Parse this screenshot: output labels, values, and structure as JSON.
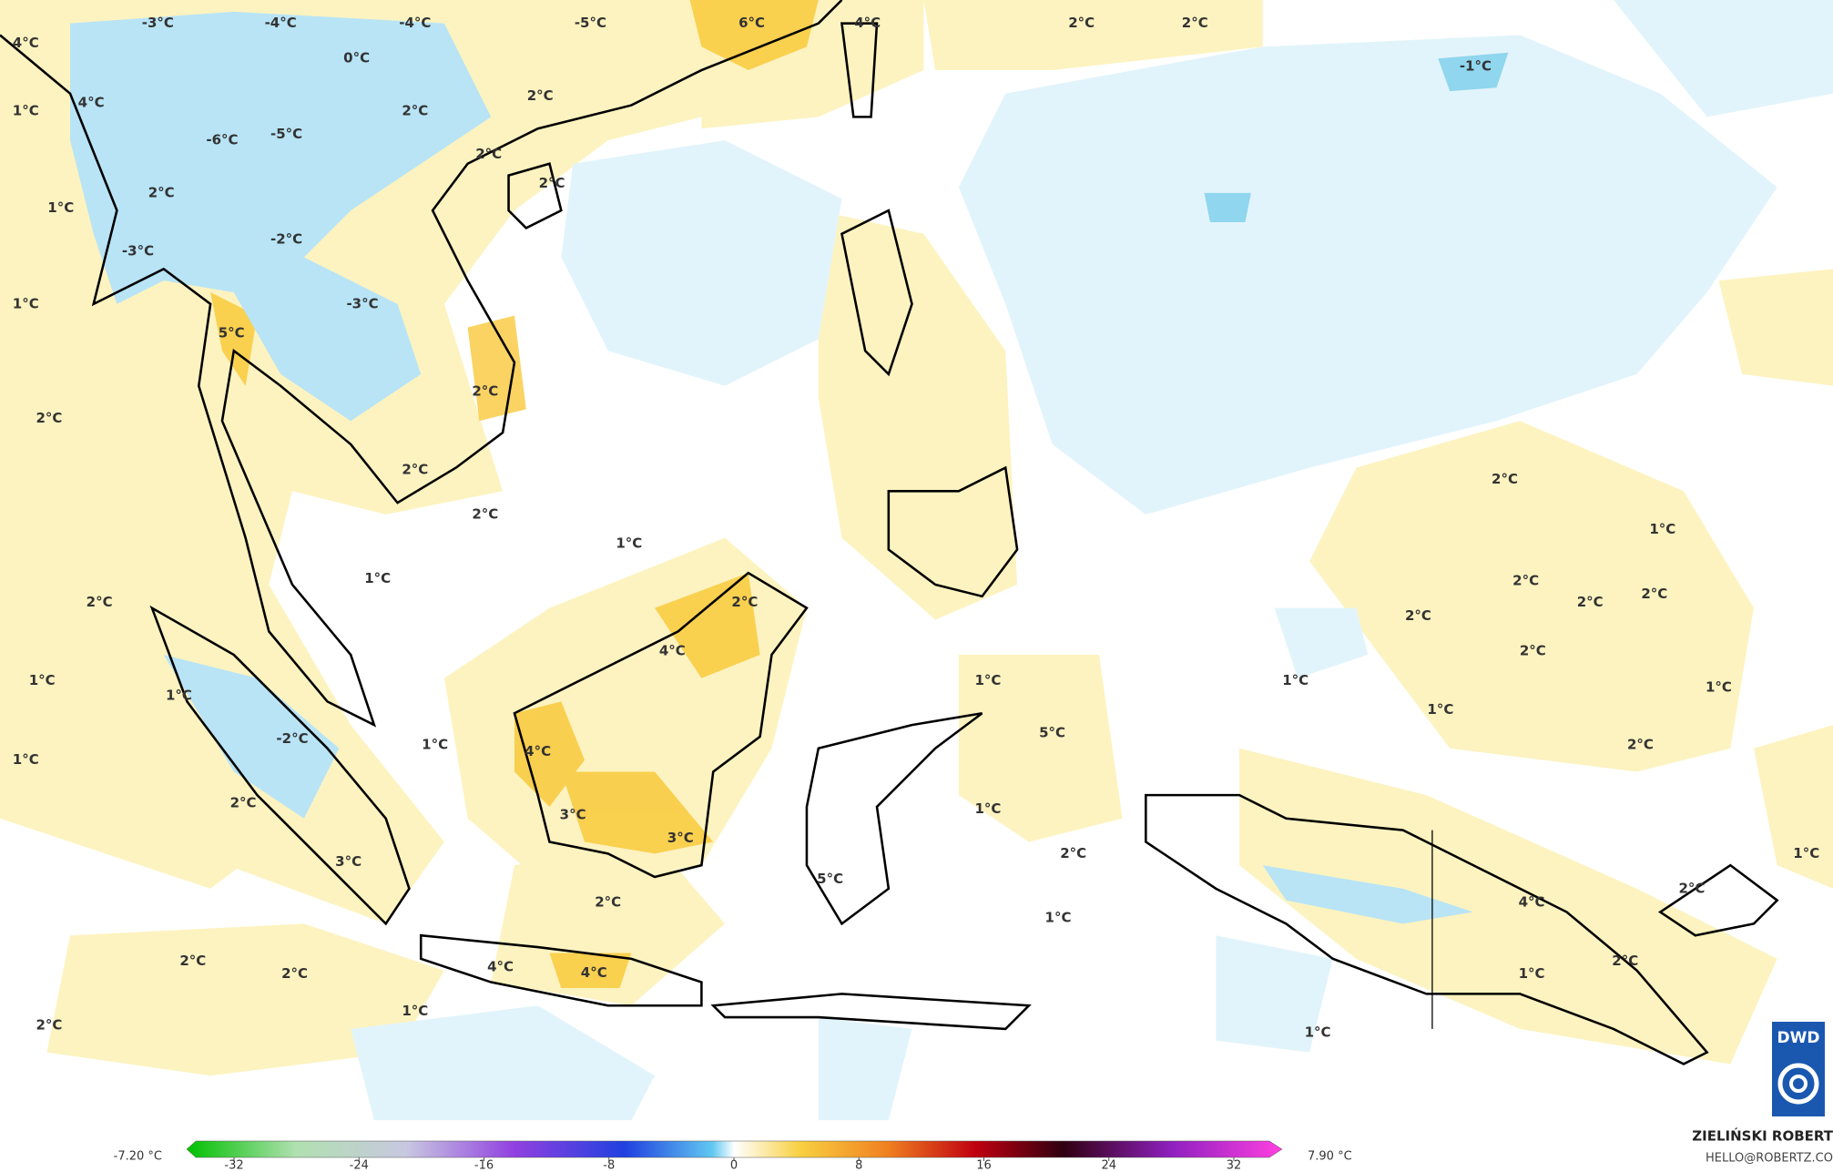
{
  "map": {
    "labels": [
      "-3°C",
      "-4°C",
      "-4°C",
      "-5°C",
      "6°C",
      "4°C",
      "2°C",
      "2°C",
      "-1°C",
      "4°C",
      "0°C",
      "2°C",
      "1°C",
      "4°C",
      "-6°C",
      "-5°C",
      "2°C",
      "2°C",
      "2°C",
      "2°C",
      "1°C",
      "-3°C",
      "-2°C",
      "1°C",
      "-3°C",
      "5°C",
      "2°C",
      "2°C",
      "2°C",
      "2°C",
      "1°C",
      "1°C",
      "2°C",
      "2°C",
      "4°C",
      "1°C",
      "1°C",
      "-2°C",
      "1°C",
      "1°C",
      "4°C",
      "2°C",
      "3°C",
      "3°C",
      "3°C",
      "5°C",
      "2°C",
      "2°C",
      "2°C",
      "4°C",
      "4°C",
      "1°C",
      "2°C",
      "1°C",
      "5°C",
      "1°C",
      "2°C",
      "1°C",
      "2°C",
      "1°C",
      "2°C",
      "2°C",
      "2°C",
      "2°C",
      "2°C",
      "1°C",
      "1°C",
      "1°C",
      "2°C",
      "1°C",
      "2°C",
      "4°C",
      "1°C",
      "2°C",
      "1°C"
    ],
    "colorbar": {
      "min_label": "-7.20 °C",
      "max_label": "7.90 °C",
      "ticks": [
        -32,
        -24,
        -16,
        -8,
        0,
        8,
        16,
        24,
        32
      ]
    },
    "credit": {
      "author": "ZIELIŃSKI ROBERT",
      "contact": "HELLO@ROBERTZ.CO"
    },
    "logo": "DWD"
  }
}
